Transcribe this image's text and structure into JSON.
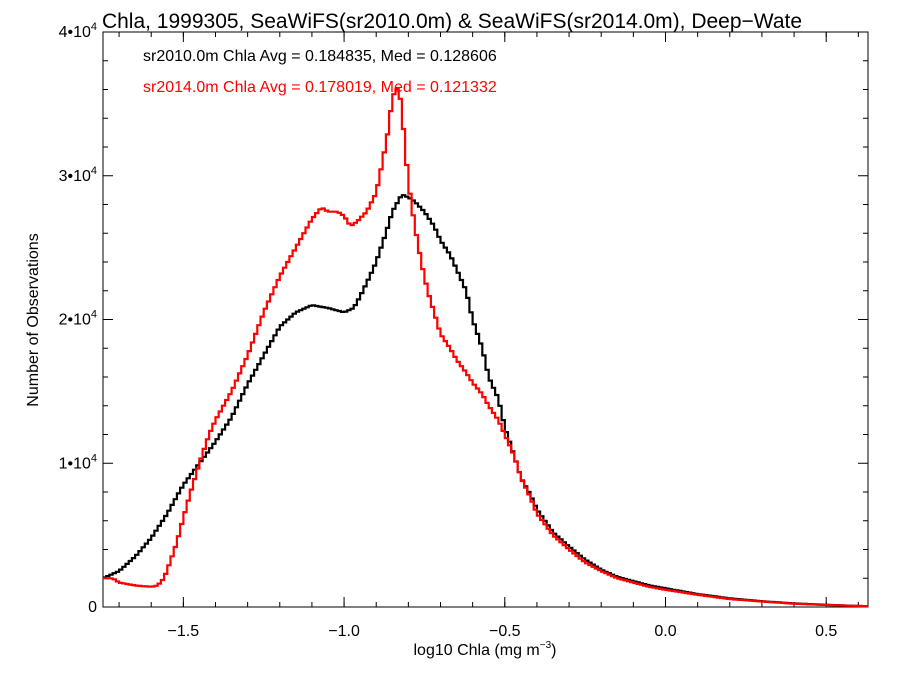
{
  "chart_data": {
    "type": "line",
    "title": "Chla, 1999305, SeaWiFS(sr2010.0m) & SeaWiFS(sr2014.0m), Deep−Wate",
    "xlabel": "log10 Chla (mg m",
    "xlabel_sup": "−3",
    "xlabel_close": ")",
    "ylabel": "Number of Observations",
    "xlim": [
      -1.75,
      0.63
    ],
    "ylim": [
      0,
      40000
    ],
    "x_ticks": [
      {
        "value": -1.5,
        "label": "−1.5"
      },
      {
        "value": -1.0,
        "label": "−1.0"
      },
      {
        "value": -0.5,
        "label": "−0.5"
      },
      {
        "value": 0.0,
        "label": "0.0"
      },
      {
        "value": 0.5,
        "label": "0.5"
      }
    ],
    "y_ticks": [
      {
        "value": 0,
        "mant": "0",
        "sup": ""
      },
      {
        "value": 10000,
        "mant": "1•10",
        "sup": "4"
      },
      {
        "value": 20000,
        "mant": "2•10",
        "sup": "4"
      },
      {
        "value": 30000,
        "mant": "3•10",
        "sup": "4"
      },
      {
        "value": 40000,
        "mant": "4•10",
        "sup": "4"
      }
    ],
    "annotations": [
      {
        "text": "sr2010.0m Chla Avg = 0.184835, Med = 0.128606",
        "color": "#000000"
      },
      {
        "text": "sr2014.0m Chla Avg = 0.178019, Med = 0.121332",
        "color": "#ff0000"
      }
    ],
    "series": [
      {
        "color": "#000000",
        "points": [
          [
            -1.75,
            2000
          ],
          [
            -1.7,
            2500
          ],
          [
            -1.65,
            3500
          ],
          [
            -1.6,
            4800
          ],
          [
            -1.55,
            6500
          ],
          [
            -1.5,
            8500
          ],
          [
            -1.45,
            10000
          ],
          [
            -1.4,
            11500
          ],
          [
            -1.35,
            13200
          ],
          [
            -1.3,
            15500
          ],
          [
            -1.25,
            17500
          ],
          [
            -1.2,
            19500
          ],
          [
            -1.15,
            20500
          ],
          [
            -1.1,
            21000
          ],
          [
            -1.05,
            20800
          ],
          [
            -1.0,
            20500
          ],
          [
            -0.97,
            20800
          ],
          [
            -0.95,
            21600
          ],
          [
            -0.92,
            23000
          ],
          [
            -0.9,
            24000
          ],
          [
            -0.87,
            26000
          ],
          [
            -0.85,
            27500
          ],
          [
            -0.82,
            28700
          ],
          [
            -0.8,
            28500
          ],
          [
            -0.78,
            28200
          ],
          [
            -0.75,
            27500
          ],
          [
            -0.72,
            26500
          ],
          [
            -0.7,
            25500
          ],
          [
            -0.67,
            24500
          ],
          [
            -0.65,
            23500
          ],
          [
            -0.62,
            22000
          ],
          [
            -0.6,
            20000
          ],
          [
            -0.57,
            18000
          ],
          [
            -0.55,
            16000
          ],
          [
            -0.52,
            14500
          ],
          [
            -0.5,
            12500
          ],
          [
            -0.47,
            10500
          ],
          [
            -0.45,
            9000
          ],
          [
            -0.42,
            7800
          ],
          [
            -0.4,
            6800
          ],
          [
            -0.35,
            5200
          ],
          [
            -0.3,
            4200
          ],
          [
            -0.25,
            3300
          ],
          [
            -0.2,
            2600
          ],
          [
            -0.15,
            2100
          ],
          [
            -0.1,
            1800
          ],
          [
            -0.05,
            1500
          ],
          [
            0.0,
            1300
          ],
          [
            0.1,
            900
          ],
          [
            0.2,
            600
          ],
          [
            0.3,
            400
          ],
          [
            0.4,
            250
          ],
          [
            0.5,
            150
          ],
          [
            0.63,
            50
          ]
        ]
      },
      {
        "color": "#ff0000",
        "points": [
          [
            -1.75,
            2000
          ],
          [
            -1.72,
            2000
          ],
          [
            -1.7,
            1700
          ],
          [
            -1.65,
            1500
          ],
          [
            -1.6,
            1400
          ],
          [
            -1.58,
            1500
          ],
          [
            -1.56,
            2000
          ],
          [
            -1.54,
            3200
          ],
          [
            -1.52,
            4500
          ],
          [
            -1.5,
            6200
          ],
          [
            -1.48,
            7800
          ],
          [
            -1.45,
            10000
          ],
          [
            -1.42,
            12000
          ],
          [
            -1.4,
            13000
          ],
          [
            -1.35,
            15000
          ],
          [
            -1.3,
            17500
          ],
          [
            -1.25,
            20500
          ],
          [
            -1.2,
            23000
          ],
          [
            -1.15,
            25000
          ],
          [
            -1.1,
            27000
          ],
          [
            -1.07,
            27800
          ],
          [
            -1.05,
            27500
          ],
          [
            -1.02,
            27500
          ],
          [
            -1.0,
            27200
          ],
          [
            -0.98,
            26500
          ],
          [
            -0.96,
            26800
          ],
          [
            -0.93,
            27500
          ],
          [
            -0.9,
            28800
          ],
          [
            -0.88,
            31000
          ],
          [
            -0.86,
            33500
          ],
          [
            -0.85,
            35500
          ],
          [
            -0.83,
            36200
          ],
          [
            -0.82,
            34500
          ],
          [
            -0.81,
            32000
          ],
          [
            -0.8,
            29500
          ],
          [
            -0.78,
            26500
          ],
          [
            -0.76,
            24000
          ],
          [
            -0.74,
            22000
          ],
          [
            -0.72,
            20500
          ],
          [
            -0.7,
            19000
          ],
          [
            -0.67,
            18000
          ],
          [
            -0.65,
            17200
          ],
          [
            -0.62,
            16300
          ],
          [
            -0.6,
            15600
          ],
          [
            -0.57,
            14800
          ],
          [
            -0.55,
            14000
          ],
          [
            -0.52,
            13000
          ],
          [
            -0.5,
            12000
          ],
          [
            -0.47,
            10500
          ],
          [
            -0.45,
            9000
          ],
          [
            -0.42,
            7600
          ],
          [
            -0.4,
            6500
          ],
          [
            -0.35,
            5000
          ],
          [
            -0.3,
            4000
          ],
          [
            -0.25,
            3100
          ],
          [
            -0.2,
            2500
          ],
          [
            -0.15,
            2000
          ],
          [
            -0.1,
            1700
          ],
          [
            -0.05,
            1400
          ],
          [
            0.0,
            1200
          ],
          [
            0.1,
            850
          ],
          [
            0.2,
            550
          ],
          [
            0.3,
            380
          ],
          [
            0.4,
            230
          ],
          [
            0.5,
            140
          ],
          [
            0.63,
            50
          ]
        ]
      }
    ]
  }
}
